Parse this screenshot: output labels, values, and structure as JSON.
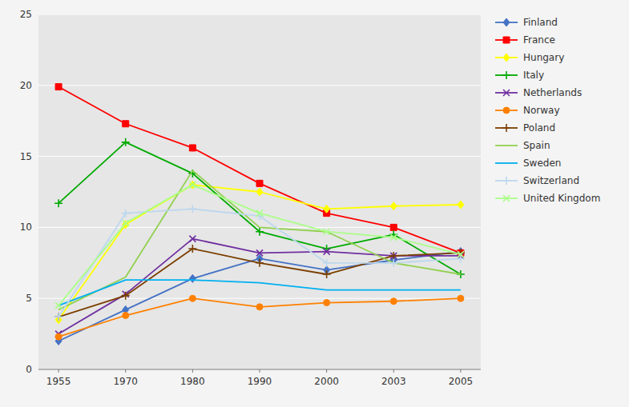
{
  "chart_data": {
    "type": "line",
    "categories": [
      "1955",
      "1970",
      "1980",
      "1990",
      "2000",
      "2003",
      "2005"
    ],
    "series": [
      {
        "name": "Finland",
        "color": "#4472C4",
        "marker": "diamond",
        "values": [
          2.0,
          4.2,
          6.4,
          7.8,
          7.0,
          7.7,
          8.3
        ]
      },
      {
        "name": "France",
        "color": "#FF0000",
        "marker": "square",
        "values": [
          19.9,
          17.3,
          15.6,
          13.1,
          11.0,
          10.0,
          8.2
        ]
      },
      {
        "name": "Hungary",
        "color": "#FFFF00",
        "marker": "diamond",
        "values": [
          3.5,
          10.2,
          13.0,
          12.5,
          11.3,
          11.5,
          11.6
        ]
      },
      {
        "name": "Italy",
        "color": "#00AA00",
        "marker": "plus",
        "values": [
          11.7,
          16.0,
          13.8,
          9.7,
          8.5,
          9.5,
          6.7
        ]
      },
      {
        "name": "Netherlands",
        "color": "#7030A0",
        "marker": "x",
        "values": [
          2.5,
          5.3,
          9.2,
          8.2,
          8.3,
          8.0,
          8.0
        ]
      },
      {
        "name": "Norway",
        "color": "#FF8000",
        "marker": "circle",
        "values": [
          2.3,
          3.8,
          5.0,
          4.4,
          4.7,
          4.8,
          5.0
        ]
      },
      {
        "name": "Poland",
        "color": "#7B3F00",
        "marker": "plus",
        "values": [
          3.7,
          5.2,
          8.5,
          7.5,
          6.7,
          8.0,
          8.2
        ]
      },
      {
        "name": "Spain",
        "color": "#92D050",
        "marker": "none",
        "values": [
          4.2,
          6.5,
          14.0,
          10.0,
          9.7,
          7.5,
          6.7
        ]
      },
      {
        "name": "Sweden",
        "color": "#00B0F0",
        "marker": "none",
        "values": [
          4.5,
          6.3,
          6.3,
          6.1,
          5.6,
          5.6,
          5.6
        ]
      },
      {
        "name": "Switzerland",
        "color": "#BDD7EE",
        "marker": "plus",
        "values": [
          3.7,
          11.0,
          11.3,
          10.8,
          7.5,
          7.5,
          7.8
        ]
      },
      {
        "name": "United Kingdom",
        "color": "#AAFF88",
        "marker": "x",
        "values": [
          4.5,
          10.3,
          13.0,
          11.0,
          9.7,
          9.3,
          8.1
        ]
      }
    ],
    "ylim": [
      0,
      25
    ],
    "yticks": [
      0,
      5,
      10,
      15,
      20,
      25
    ],
    "grid": true,
    "legend": "right"
  }
}
